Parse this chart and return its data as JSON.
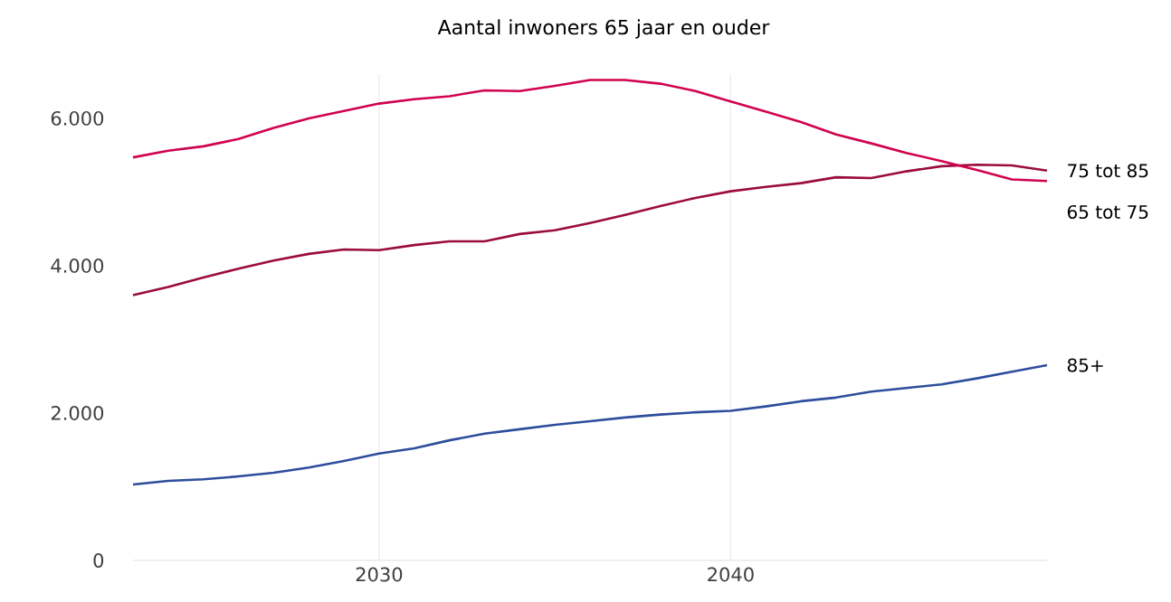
{
  "chart_data": {
    "type": "line",
    "title": "Aantal inwoners 65 jaar en ouder",
    "x": [
      2023,
      2024,
      2025,
      2026,
      2027,
      2028,
      2029,
      2030,
      2031,
      2032,
      2033,
      2034,
      2035,
      2036,
      2037,
      2038,
      2039,
      2040,
      2041,
      2042,
      2043,
      2044,
      2045,
      2046,
      2047,
      2048,
      2049
    ],
    "series": [
      {
        "name": "75 tot 85",
        "color": "#9b0c3c",
        "values": [
          3600,
          3710,
          3840,
          3960,
          4070,
          4160,
          4220,
          4210,
          4280,
          4330,
          4330,
          4430,
          4480,
          4580,
          4690,
          4810,
          4920,
          5010,
          5070,
          5120,
          5200,
          5190,
          5280,
          5350,
          5370,
          5360,
          5290
        ]
      },
      {
        "name": "65 tot 75",
        "color": "#d1024f",
        "values": [
          5470,
          5560,
          5620,
          5720,
          5870,
          6000,
          6100,
          6200,
          6260,
          6300,
          6380,
          6370,
          6440,
          6520,
          6520,
          6470,
          6370,
          6230,
          6090,
          5950,
          5780,
          5660,
          5530,
          5420,
          5300,
          5170,
          5150
        ]
      },
      {
        "name": "85+",
        "color": "#2d4e9c",
        "values": [
          1030,
          1080,
          1100,
          1140,
          1190,
          1260,
          1350,
          1450,
          1520,
          1630,
          1720,
          1780,
          1840,
          1890,
          1940,
          1980,
          2010,
          2030,
          2090,
          2160,
          2210,
          2290,
          2340,
          2390,
          2470,
          2560,
          2650
        ]
      }
    ],
    "xlim": [
      2023,
      2049
    ],
    "ylim": [
      0,
      6600
    ],
    "xticks": [
      2030,
      2040
    ],
    "yticks": [
      0,
      {
        "value": 2000,
        "label": "2.000"
      },
      {
        "value": 4000,
        "label": "4.000"
      },
      {
        "value": 6000,
        "label": "6.000"
      }
    ],
    "grid": "x",
    "legend": false,
    "marker": "none",
    "line_style": "solid"
  }
}
